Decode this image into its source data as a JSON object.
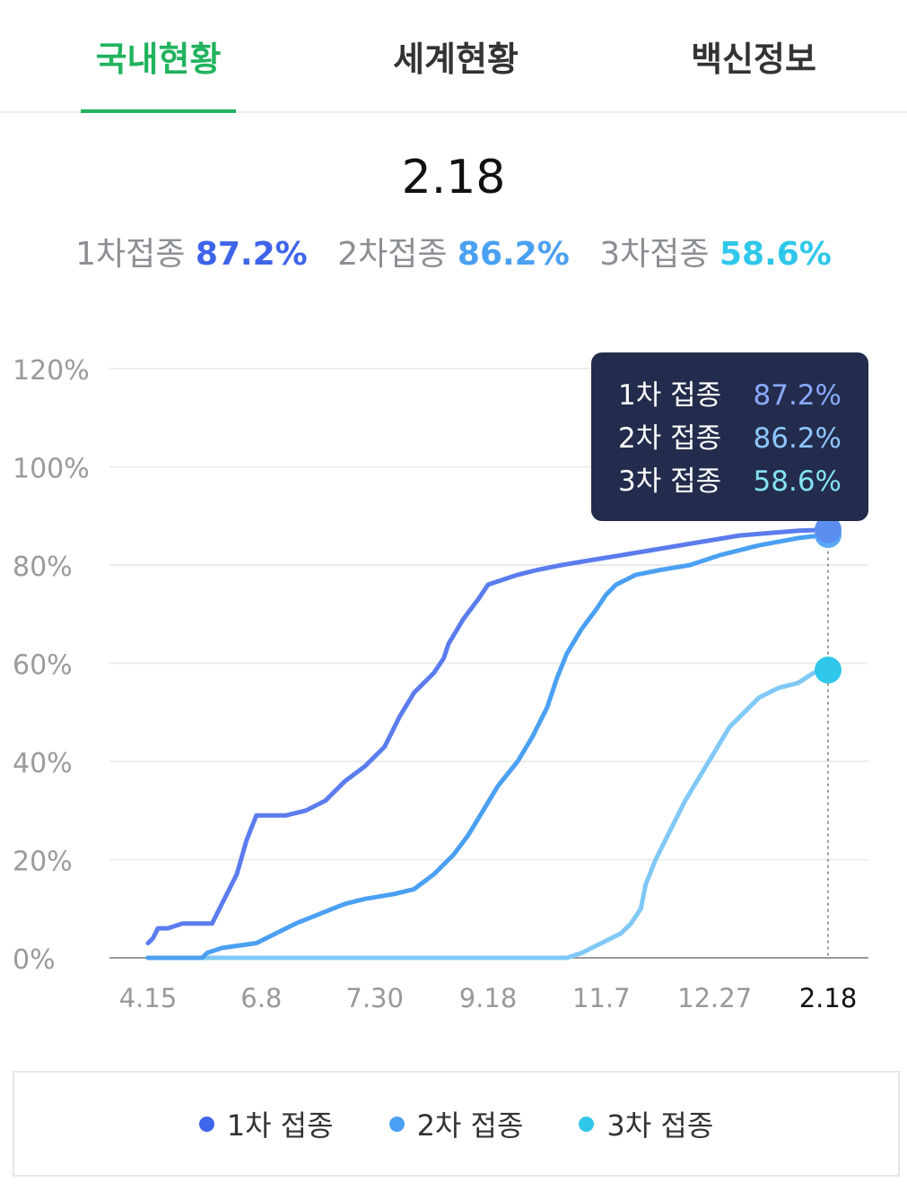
{
  "tabs": [
    {
      "label": "국내현황",
      "active": true
    },
    {
      "label": "세계현황",
      "active": false
    },
    {
      "label": "백신정보",
      "active": false
    }
  ],
  "date": "2.18",
  "summary": [
    {
      "label": "1차접종",
      "value": "87.2%",
      "color": "#3e64ea"
    },
    {
      "label": "2차접종",
      "value": "86.2%",
      "color": "#4aa0f2"
    },
    {
      "label": "3차접종",
      "value": "58.6%",
      "color": "#2fc7ea"
    }
  ],
  "tooltip": [
    {
      "label": "1차 접종",
      "value": "87.2%",
      "color": "#8aa9ff"
    },
    {
      "label": "2차 접종",
      "value": "86.2%",
      "color": "#8ec7ff"
    },
    {
      "label": "3차 접종",
      "value": "58.6%",
      "color": "#82e2f2"
    }
  ],
  "legend": [
    {
      "label": "1차 접종",
      "color": "#3e64ea"
    },
    {
      "label": "2차 접종",
      "color": "#4aa0f2"
    },
    {
      "label": "3차 접종",
      "color": "#2fc7ea"
    }
  ],
  "chart_data": {
    "type": "line",
    "y_ticks": [
      "0%",
      "20%",
      "40%",
      "60%",
      "80%",
      "100%",
      "120%"
    ],
    "ylim": [
      0,
      120
    ],
    "x_ticks": [
      "4.15",
      "6.8",
      "7.30",
      "9.18",
      "11.7",
      "12.27",
      "2.18"
    ],
    "highlight_x": "2.18",
    "grid": true,
    "legend_position": "bottom",
    "series": [
      {
        "name": "1차 접종",
        "color": "#5b7cee",
        "values": [
          [
            0,
            3
          ],
          [
            5,
            4
          ],
          [
            10,
            6
          ],
          [
            20,
            6
          ],
          [
            35,
            7
          ],
          [
            65,
            7
          ],
          [
            75,
            11
          ],
          [
            90,
            17
          ],
          [
            100,
            24
          ],
          [
            110,
            29
          ],
          [
            140,
            29
          ],
          [
            160,
            30
          ],
          [
            180,
            32
          ],
          [
            200,
            36
          ],
          [
            220,
            39
          ],
          [
            240,
            43
          ],
          [
            255,
            49
          ],
          [
            270,
            54
          ],
          [
            290,
            58
          ],
          [
            300,
            61
          ],
          [
            305,
            64
          ],
          [
            320,
            69
          ],
          [
            335,
            73
          ],
          [
            345,
            76
          ],
          [
            360,
            77
          ],
          [
            375,
            78
          ],
          [
            395,
            79
          ],
          [
            420,
            80
          ],
          [
            450,
            81
          ],
          [
            480,
            82
          ],
          [
            510,
            83
          ],
          [
            540,
            84
          ],
          [
            570,
            85
          ],
          [
            600,
            86
          ],
          [
            630,
            86.5
          ],
          [
            660,
            87
          ],
          [
            690,
            87.2
          ]
        ]
      },
      {
        "name": "2차 접종",
        "color": "#4aa0f2",
        "values": [
          [
            0,
            0
          ],
          [
            55,
            0
          ],
          [
            60,
            1
          ],
          [
            75,
            2
          ],
          [
            110,
            3
          ],
          [
            130,
            5
          ],
          [
            150,
            7
          ],
          [
            175,
            9
          ],
          [
            200,
            11
          ],
          [
            220,
            12
          ],
          [
            250,
            13
          ],
          [
            270,
            14
          ],
          [
            290,
            17
          ],
          [
            310,
            21
          ],
          [
            325,
            25
          ],
          [
            340,
            30
          ],
          [
            355,
            35
          ],
          [
            375,
            40
          ],
          [
            390,
            45
          ],
          [
            405,
            51
          ],
          [
            415,
            57
          ],
          [
            425,
            62
          ],
          [
            440,
            67
          ],
          [
            455,
            71
          ],
          [
            465,
            74
          ],
          [
            475,
            76
          ],
          [
            485,
            77
          ],
          [
            495,
            78
          ],
          [
            520,
            79
          ],
          [
            550,
            80
          ],
          [
            580,
            82
          ],
          [
            620,
            84
          ],
          [
            660,
            85.5
          ],
          [
            690,
            86.2
          ]
        ]
      },
      {
        "name": "3차 접종",
        "color": "#80c8f6",
        "values": [
          [
            0,
            0
          ],
          [
            425,
            0
          ],
          [
            440,
            1
          ],
          [
            460,
            3
          ],
          [
            480,
            5
          ],
          [
            490,
            7
          ],
          [
            500,
            10
          ],
          [
            505,
            15
          ],
          [
            515,
            20
          ],
          [
            530,
            26
          ],
          [
            545,
            32
          ],
          [
            560,
            37
          ],
          [
            575,
            42
          ],
          [
            590,
            47
          ],
          [
            605,
            50
          ],
          [
            620,
            53
          ],
          [
            640,
            55
          ],
          [
            660,
            56
          ],
          [
            675,
            58
          ],
          [
            690,
            58.6
          ]
        ]
      }
    ]
  }
}
